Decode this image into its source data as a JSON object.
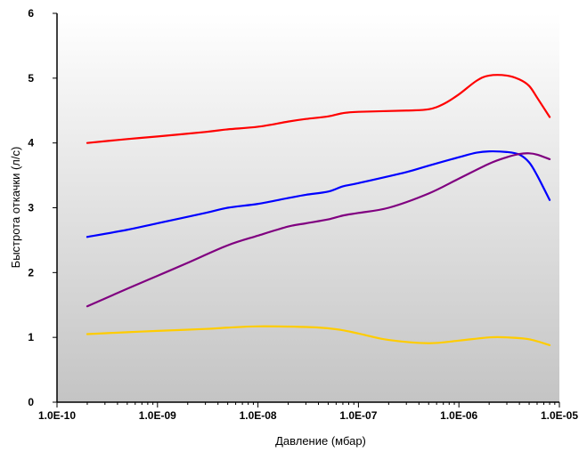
{
  "chart_data": {
    "type": "line",
    "title": "",
    "xlabel": "Давление (мбар)",
    "ylabel": "Быстрота откачки (л/с)",
    "x_scale": "log",
    "xlim": [
      1e-10,
      1e-05
    ],
    "ylim": [
      0,
      6
    ],
    "x_tick_labels": [
      "1.0E-10",
      "1.0E-09",
      "1.0E-08",
      "1.0E-07",
      "1.0E-06",
      "1.0E-05"
    ],
    "y_tick_labels": [
      "0",
      "1",
      "2",
      "3",
      "4",
      "5",
      "6"
    ],
    "grid": false,
    "legend": "none",
    "background_gradient": [
      "#ffffff",
      "#c4c4c4"
    ],
    "series": [
      {
        "color": "#ff0000",
        "x": [
          2e-10,
          5e-10,
          1e-09,
          3e-09,
          5e-09,
          1e-08,
          2e-08,
          3e-08,
          5e-08,
          7e-08,
          1e-07,
          3e-07,
          5e-07,
          7e-07,
          1e-06,
          1.5e-06,
          2e-06,
          3e-06,
          4e-06,
          5e-06,
          6e-06,
          8e-06
        ],
        "y": [
          4.0,
          4.06,
          4.1,
          4.17,
          4.21,
          4.25,
          4.33,
          4.37,
          4.41,
          4.46,
          4.48,
          4.5,
          4.52,
          4.6,
          4.75,
          4.96,
          5.04,
          5.04,
          4.98,
          4.88,
          4.7,
          4.4
        ]
      },
      {
        "color": "#0000ff",
        "x": [
          2e-10,
          5e-10,
          1e-09,
          3e-09,
          5e-09,
          1e-08,
          2e-08,
          3e-08,
          5e-08,
          7e-08,
          1e-07,
          3e-07,
          5e-07,
          1e-06,
          1.5e-06,
          2e-06,
          3e-06,
          4e-06,
          5e-06,
          6e-06,
          8e-06
        ],
        "y": [
          2.55,
          2.66,
          2.76,
          2.92,
          3.0,
          3.06,
          3.15,
          3.2,
          3.25,
          3.33,
          3.38,
          3.55,
          3.65,
          3.78,
          3.85,
          3.87,
          3.86,
          3.82,
          3.7,
          3.5,
          3.12
        ]
      },
      {
        "color": "#800080",
        "x": [
          2e-10,
          5e-10,
          1e-09,
          2e-09,
          5e-09,
          1e-08,
          2e-08,
          3e-08,
          5e-08,
          7e-08,
          1e-07,
          2e-07,
          5e-07,
          1e-06,
          2e-06,
          3e-06,
          4e-06,
          5e-06,
          6e-06,
          8e-06
        ],
        "y": [
          1.48,
          1.75,
          1.95,
          2.15,
          2.42,
          2.57,
          2.71,
          2.76,
          2.82,
          2.88,
          2.92,
          3.0,
          3.22,
          3.45,
          3.68,
          3.78,
          3.83,
          3.84,
          3.82,
          3.75
        ]
      },
      {
        "color": "#ffcc00",
        "x": [
          2e-10,
          5e-10,
          1e-09,
          3e-09,
          5e-09,
          1e-08,
          3e-08,
          5e-08,
          7e-08,
          1e-07,
          2e-07,
          5e-07,
          1e-06,
          2e-06,
          3e-06,
          5e-06,
          8e-06
        ],
        "y": [
          1.05,
          1.08,
          1.1,
          1.13,
          1.15,
          1.17,
          1.16,
          1.14,
          1.11,
          1.06,
          0.96,
          0.91,
          0.95,
          1.0,
          1.0,
          0.97,
          0.88
        ]
      }
    ]
  }
}
